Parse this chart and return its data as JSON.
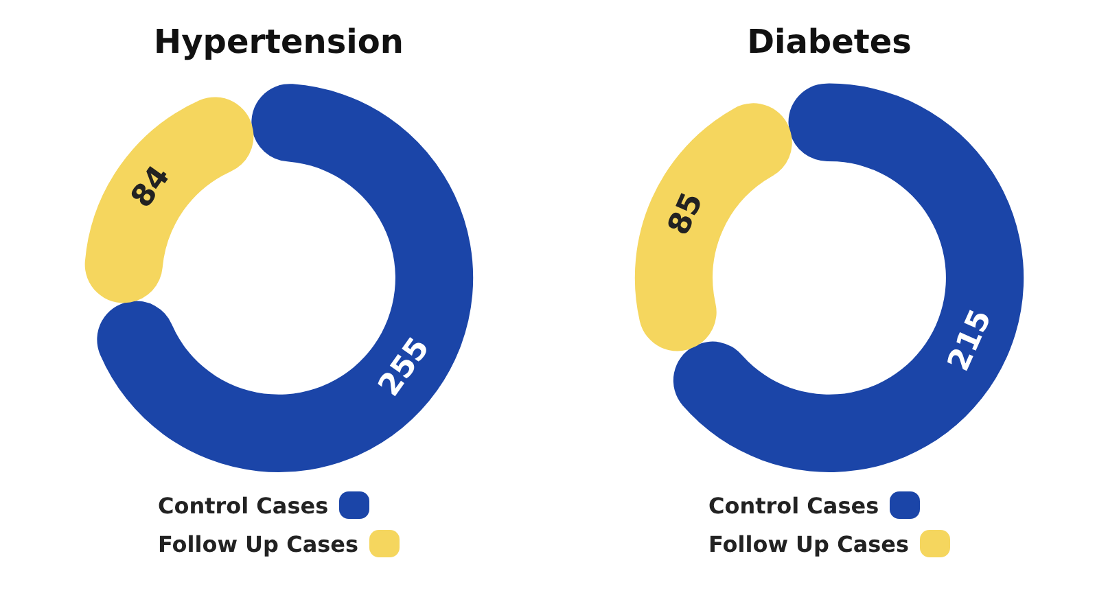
{
  "chart_data": [
    {
      "type": "donut",
      "title": "Hypertension",
      "categories": [
        "Control Cases",
        "Follow Up Cases"
      ],
      "values": [
        255,
        84
      ],
      "colors": [
        "#1b45a8",
        "#f5d65e"
      ],
      "data_labels": true,
      "legend": "bottom"
    },
    {
      "type": "donut",
      "title": "Diabetes",
      "categories": [
        "Control Cases",
        "Follow Up Cases"
      ],
      "values": [
        215,
        85
      ],
      "colors": [
        "#1b45a8",
        "#f5d65e"
      ],
      "data_labels": true,
      "legend": "bottom"
    }
  ]
}
